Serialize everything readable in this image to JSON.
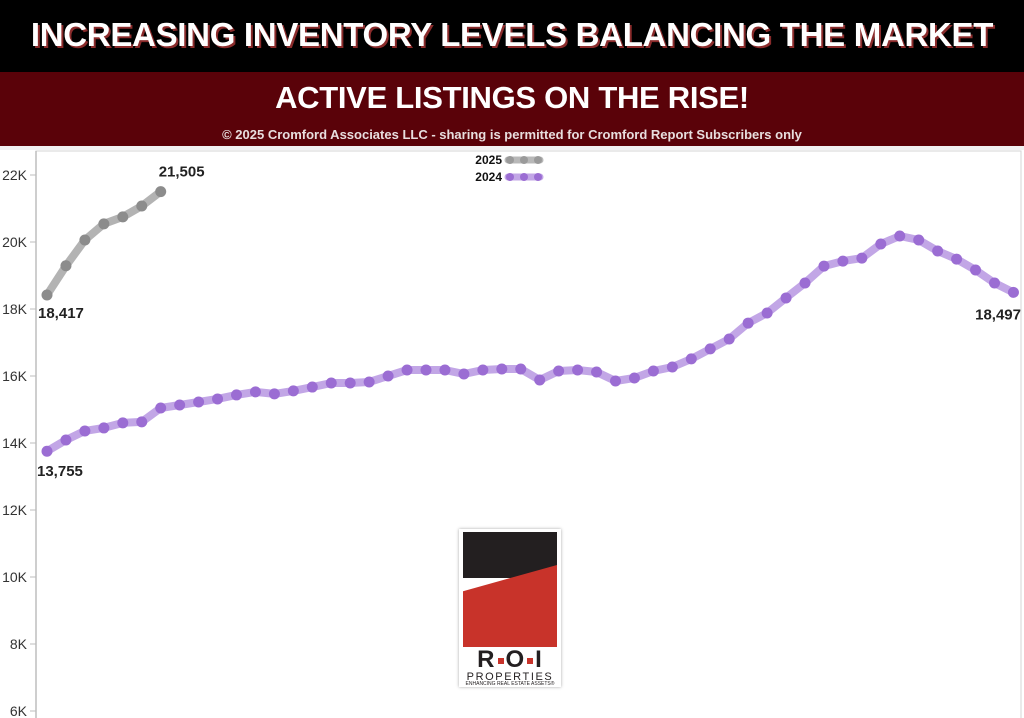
{
  "header": {
    "title": "INCREASING INVENTORY LEVELS BALANCING THE MARKET",
    "subtitle": "ACTIVE LISTINGS ON THE RISE!",
    "copyright": "© 2025 Cromford Associates LLC - sharing is permitted for Cromford Report Subscribers only"
  },
  "colors": {
    "header_black": "#000000",
    "header_maroon": "#5a0209",
    "series_2025": "#8c8c8c",
    "series_2024": "#9b6dd3",
    "logo_red": "#c8332a",
    "logo_black": "#231f20"
  },
  "logo": {
    "letters": [
      "R",
      "O",
      "I"
    ],
    "name": "PROPERTIES",
    "tagline": "ENHANCING REAL ESTATE ASSETS®"
  },
  "chart_data": {
    "type": "line",
    "title": "Active Listings on the Rise!",
    "xlabel": "",
    "ylabel": "",
    "ylim": [
      6000,
      22500
    ],
    "yticks": [
      6000,
      8000,
      10000,
      12000,
      14000,
      16000,
      18000,
      20000,
      22000
    ],
    "ytick_labels": [
      "6K",
      "8K",
      "10K",
      "12K",
      "14K",
      "16K",
      "18K",
      "20K",
      "22K"
    ],
    "grid": false,
    "legend_position": "top-center",
    "legend": [
      "2025",
      "2024"
    ],
    "x": [
      1,
      2,
      3,
      4,
      5,
      6,
      7,
      8,
      9,
      10,
      11,
      12,
      13,
      14,
      15,
      16,
      17,
      18,
      19,
      20,
      21,
      22,
      23,
      24,
      25,
      26,
      27,
      28,
      29,
      30,
      31,
      32,
      33,
      34,
      35,
      36,
      37,
      38,
      39,
      40,
      41,
      42,
      43,
      44,
      45,
      46,
      47,
      48,
      49,
      50,
      51,
      52
    ],
    "series": [
      {
        "name": "2025",
        "color": "#8c8c8c",
        "values": [
          18417,
          19290,
          20060,
          20540,
          20750,
          21075,
          21505
        ],
        "labels": [
          {
            "index": 0,
            "text": "18,417"
          },
          {
            "index": 6,
            "text": "21,505"
          }
        ]
      },
      {
        "name": "2024",
        "color": "#9b6dd3",
        "values": [
          13755,
          14090,
          14360,
          14450,
          14600,
          14630,
          15045,
          15135,
          15225,
          15315,
          15435,
          15525,
          15465,
          15555,
          15670,
          15790,
          15790,
          15820,
          16000,
          16180,
          16180,
          16180,
          16060,
          16180,
          16210,
          16210,
          15880,
          16150,
          16180,
          16120,
          15850,
          15940,
          16150,
          16270,
          16510,
          16810,
          17105,
          17580,
          17880,
          18330,
          18775,
          19280,
          19430,
          19520,
          19940,
          20180,
          20060,
          19730,
          19490,
          19165,
          18775,
          18497
        ],
        "labels": [
          {
            "index": 0,
            "text": "13,755"
          },
          {
            "index": 51,
            "text": "18,497"
          }
        ]
      }
    ]
  }
}
